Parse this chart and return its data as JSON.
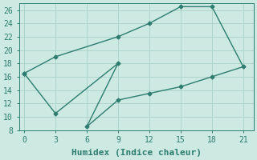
{
  "xlabel": "Humidex (Indice chaleur)",
  "background_color": "#cce9e2",
  "line_color": "#2e7d6e",
  "grid_color": "#aed4cc",
  "xlim": [
    -0.5,
    22
  ],
  "ylim": [
    8,
    27
  ],
  "xticks": [
    0,
    3,
    6,
    9,
    12,
    15,
    18,
    21
  ],
  "yticks": [
    8,
    10,
    12,
    14,
    16,
    18,
    20,
    22,
    24,
    26
  ],
  "path_x": [
    0,
    3,
    9,
    12,
    15,
    18,
    21,
    18,
    15,
    12,
    9,
    6,
    9,
    3,
    0
  ],
  "path_y": [
    16.5,
    19.0,
    22.0,
    24.0,
    26.5,
    26.5,
    17.5,
    16.0,
    14.5,
    13.5,
    12.5,
    8.5,
    18.0,
    10.5,
    16.5
  ],
  "marker_x": [
    0,
    3,
    9,
    12,
    15,
    18,
    21,
    18,
    15,
    12,
    9,
    6,
    9,
    3,
    0
  ],
  "marker_y": [
    16.5,
    19.0,
    22.0,
    24.0,
    26.5,
    26.5,
    17.5,
    16.0,
    14.5,
    13.5,
    12.5,
    8.5,
    18.0,
    10.5,
    16.5
  ],
  "xlabel_fontsize": 8,
  "tick_fontsize": 7,
  "line_width": 1.0,
  "marker_size": 2.5,
  "figsize": [
    3.2,
    2.0
  ],
  "dpi": 100
}
